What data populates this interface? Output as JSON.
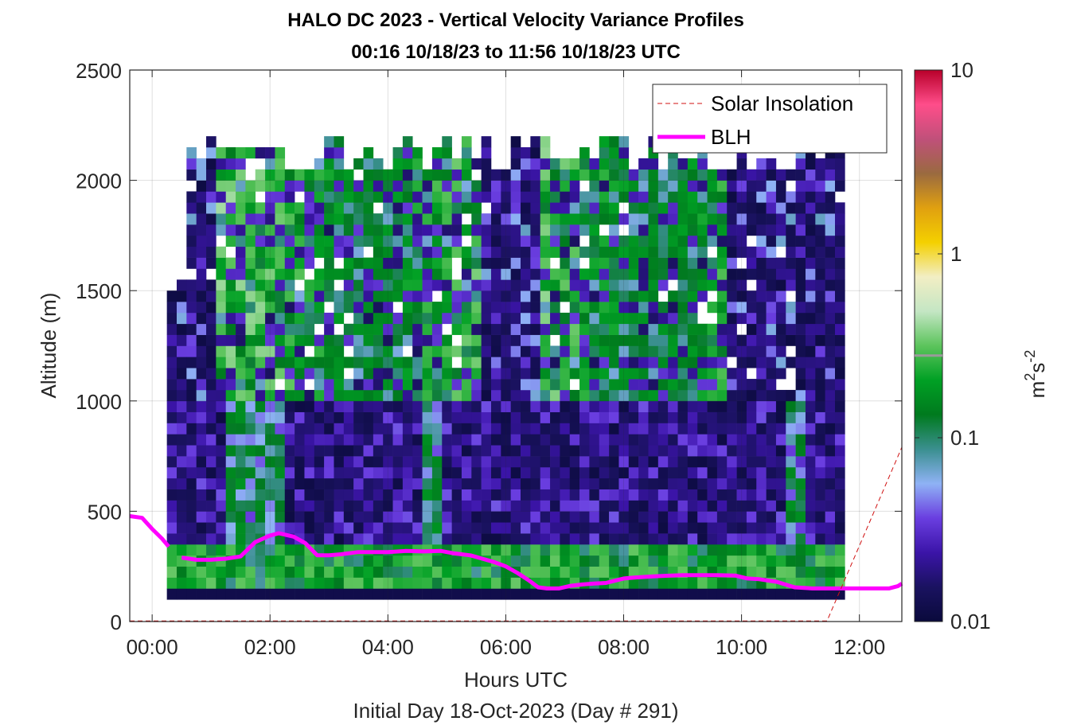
{
  "chart_data": {
    "type": "heatmap",
    "title": "HALO DC 2023 - Vertical Velocity Variance Profiles",
    "subtitle": "00:16 10/18/23 to 11:56 10/18/23  UTC",
    "xlabel": "Hours UTC",
    "xlabel2": "Initial Day 18-Oct-2023 (Day # 291)",
    "ylabel": "Altitude (m)",
    "colorbar_label": "m²s⁻²",
    "colorbar_label_base": "m",
    "colorbar_label_exp1": "2",
    "colorbar_label_mid": "s",
    "colorbar_label_exp2": "-2",
    "xlim": [
      -0.38,
      12.72
    ],
    "ylim": [
      0,
      2500
    ],
    "x_ticks": [
      {
        "value": 0,
        "label": "00:00"
      },
      {
        "value": 2,
        "label": "02:00"
      },
      {
        "value": 4,
        "label": "04:00"
      },
      {
        "value": 6,
        "label": "06:00"
      },
      {
        "value": 8,
        "label": "08:00"
      },
      {
        "value": 10,
        "label": "10:00"
      },
      {
        "value": 12,
        "label": "12:00"
      }
    ],
    "y_ticks": [
      {
        "value": 0,
        "label": "0"
      },
      {
        "value": 500,
        "label": "500"
      },
      {
        "value": 1000,
        "label": "1000"
      },
      {
        "value": 1500,
        "label": "1500"
      },
      {
        "value": 2000,
        "label": "2000"
      },
      {
        "value": 2500,
        "label": "2500"
      }
    ],
    "colorbar": {
      "scale": "log",
      "range": [
        0.01,
        10
      ],
      "ticks": [
        {
          "value": 0.01,
          "label": "0.01"
        },
        {
          "value": 0.1,
          "label": "0.1"
        },
        {
          "value": 1,
          "label": "1"
        },
        {
          "value": 10,
          "label": "10"
        }
      ],
      "colormap": [
        "#0a0a3c",
        "#1a1260",
        "#3b14a8",
        "#6a3ee0",
        "#8fb2f5",
        "#3a8f8f",
        "#007a1e",
        "#00a024",
        "#5cc45c",
        "#c4e6c4",
        "#f2eec4",
        "#f4d000",
        "#e0a010",
        "#9a6a40",
        "#c0507a",
        "#ff4d8a",
        "#b8002a"
      ]
    },
    "grid": true,
    "legend": {
      "placement": "top-right",
      "entries": [
        {
          "label": "Solar Insolation",
          "color": "#d01010",
          "style": "dashed"
        },
        {
          "label": "BLH",
          "color": "#ff00ff",
          "style": "solid"
        }
      ]
    },
    "heatmap": {
      "x_start_hour": 0.25,
      "x_step_hours": 0.1667,
      "y_start_m": 100,
      "y_step_m": 50,
      "value_units": "m2 s-2",
      "rows_low_to_high": [
        "BCCAAAAAAABBBBABBBBBBBBBBBBBBBBBBBBBBBBBBBBBBBBBBBBBBBBBBBBBBBBBBBBBB",
        "BCBBCCBBCCCCBCCCCCCCCCCCCCCCCCCCCCCCBBBBBBAAAAAAAAAAAAAAAAAAAAAAAAAAAA",
        "BCBBCCBBCCBBBBBCBBBBBBCBBBBCBAAABBBAAAAAAAABAABBBAAAAAAAAAAAAAAAAAAAAA",
        "AAACAAAAAAAAAAAAAAAAAAAAAAAAAAAAAAAAAAAAAAAAAAAAAAAAAAAAAAABABAAAAAAAAA",
        "AAAAAAAABBAAAAAAAAAAAAAAAAAAAAAAAAAAAAAAAAAAAAAAAAAAAAAAAAAAAAAAAAAAAAA"
      ],
      "dominant_value_ranges": [
        {
          "alt_min": 100,
          "alt_max": 300,
          "typical_value": 0.15
        },
        {
          "alt_min": 300,
          "alt_max": 1000,
          "typical_value": 0.02
        },
        {
          "alt_min": 1000,
          "alt_max": 2200,
          "typical_value": 0.08
        }
      ]
    },
    "series": [
      {
        "name": "BLH",
        "color": "#ff00ff",
        "x": [
          -0.38,
          -0.17,
          0.0,
          0.17,
          0.28,
          0.5,
          0.75,
          1.0,
          1.25,
          1.5,
          1.75,
          2.0,
          2.15,
          2.4,
          2.6,
          2.8,
          3.0,
          3.2,
          3.5,
          3.8,
          4.0,
          4.3,
          4.6,
          4.9,
          5.1,
          5.4,
          5.6,
          5.8,
          6.0,
          6.2,
          6.4,
          6.55,
          6.7,
          6.9,
          7.1,
          7.3,
          7.5,
          7.7,
          8.0,
          8.2,
          8.5,
          8.8,
          9.0,
          9.3,
          9.6,
          9.9,
          10.1,
          10.3,
          10.6,
          10.9,
          11.2,
          11.5,
          11.8,
          12.1,
          12.5,
          12.65,
          12.72
        ],
        "y": [
          478,
          470,
          420,
          375,
          340,
          290,
          280,
          280,
          285,
          295,
          360,
          390,
          400,
          385,
          355,
          300,
          300,
          305,
          315,
          315,
          315,
          320,
          318,
          320,
          310,
          300,
          285,
          270,
          250,
          220,
          185,
          155,
          150,
          150,
          162,
          168,
          172,
          175,
          195,
          200,
          205,
          208,
          210,
          210,
          210,
          208,
          195,
          192,
          180,
          155,
          150,
          150,
          150,
          150,
          150,
          160,
          172
        ],
        "style": "solid"
      },
      {
        "name": "Solar Insolation",
        "color": "#d01010",
        "x": [
          -0.38,
          11.45,
          12.72
        ],
        "y": [
          3,
          3,
          790
        ],
        "style": "dashed"
      }
    ]
  }
}
